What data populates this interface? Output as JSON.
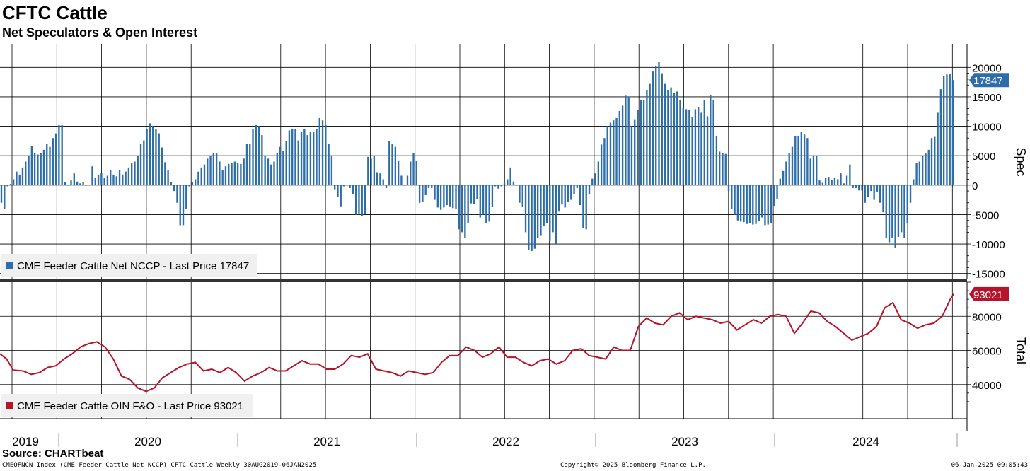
{
  "title": "CFTC Cattle",
  "subtitle": "Net Speculators & Open Interest",
  "source": "Source: CHARTbeat",
  "footer": {
    "left": "CMEOFNCN Index (CME Feeder Cattle Net NCCP) CFTC Cattle  Weekly 30AUG2019-06JAN2025",
    "middle": "Copyright© 2025 Bloomberg Finance L.P.",
    "right": "06-Jan-2025 09:05:43"
  },
  "colors": {
    "spec": "#2e6ea8",
    "total": "#b5152b"
  },
  "chart_data": [
    {
      "type": "bar",
      "ylabel": "Spec",
      "ylim": [
        -16000,
        24000
      ],
      "yticks": [
        20000,
        15000,
        10000,
        5000,
        0,
        -5000,
        -10000,
        -15000
      ],
      "ytick_labels": [
        "20000",
        "15000",
        "10000",
        "5000",
        "0",
        "-5000",
        "-10000",
        "-15000"
      ],
      "legend": "CME Feeder Cattle Net NCCP - Last Price 17847",
      "last_value_label": "17847",
      "last_value": 17847,
      "series": [
        {
          "name": "CME Feeder Cattle Net NCCP",
          "values": [
            -3000,
            -4000,
            -200,
            200,
            1000,
            2300,
            1800,
            3000,
            4000,
            5000,
            6600,
            5500,
            5200,
            5400,
            6000,
            7000,
            6500,
            8000,
            8800,
            10200,
            10200,
            500,
            -100,
            800,
            2000,
            600,
            300,
            500,
            -100,
            0,
            3200,
            1200,
            1800,
            2000,
            1300,
            1600,
            2600,
            1800,
            1500,
            2500,
            1800,
            2300,
            3000,
            3800,
            4000,
            5000,
            7000,
            7600,
            9500,
            10500,
            10000,
            9500,
            8800,
            6400,
            3900,
            2500,
            500,
            -1000,
            -3000,
            -6800,
            -6800,
            -4000,
            -200,
            500,
            1000,
            2300,
            3000,
            3500,
            4500,
            5000,
            5500,
            5500,
            4000,
            2500,
            3200,
            3600,
            3800,
            4000,
            3700,
            3600,
            4500,
            7000,
            7000,
            9500,
            10200,
            10000,
            8500,
            5000,
            4500,
            3500,
            4000,
            5500,
            6500,
            5800,
            7500,
            9300,
            9600,
            9500,
            7600,
            9000,
            9500,
            8500,
            9000,
            9000,
            9500,
            11400,
            11000,
            10200,
            7000,
            5000,
            -700,
            -2000,
            -3600,
            -200,
            0,
            -500,
            -1500,
            -5000,
            -4800,
            -5200,
            -4900,
            4800,
            4500,
            5000,
            2200,
            2000,
            1000,
            -500,
            7500,
            7000,
            6500,
            4200,
            1600,
            -100,
            1600,
            4000,
            5400,
            4100,
            -3000,
            -2800,
            -1700,
            -500,
            -500,
            -2500,
            -3800,
            -4200,
            -3800,
            -3400,
            -3600,
            -3900,
            -4100,
            -7500,
            -8000,
            -9000,
            -6400,
            -3100,
            -3200,
            -2400,
            -5500,
            -5000,
            -6500,
            -6200,
            -3700,
            -200,
            -600,
            -200,
            400,
            1000,
            3000,
            600,
            -100,
            -3000,
            -3700,
            -8000,
            -11000,
            -11200,
            -10800,
            -9000,
            -8500,
            -7000,
            -6500,
            -9500,
            -8000,
            -10000,
            -4500,
            -3300,
            -3800,
            -2800,
            -2500,
            -1500,
            -500,
            -3400,
            -7300,
            -7500,
            -1600,
            1100,
            2000,
            4000,
            6900,
            8000,
            10000,
            10600,
            11000,
            11400,
            12600,
            13500,
            15200,
            15000,
            10000,
            11200,
            12800,
            14500,
            14400,
            16200,
            17200,
            19300,
            20200,
            21000,
            19000,
            17200,
            16200,
            16600,
            15600,
            15900,
            14500,
            13100,
            12900,
            12800,
            11500,
            12900,
            13200,
            12300,
            14500,
            11700,
            15300,
            14500,
            8400,
            5700,
            5400,
            5300,
            -1000,
            -4000,
            -5000,
            -6000,
            -6200,
            -6300,
            -6600,
            -6500,
            -6700,
            -6600,
            -6100,
            -5500,
            -6800,
            -6700,
            -6500,
            -3500,
            -2300,
            1100,
            2400,
            4000,
            5500,
            6500,
            8300,
            8400,
            9100,
            8600,
            8000,
            4500,
            4900,
            5000,
            800,
            400,
            1200,
            1400,
            900,
            1200,
            1000,
            2000,
            300,
            1600,
            3500,
            -500,
            -500,
            -900,
            -900,
            -3000,
            -2000,
            -1000,
            -2500,
            -1100,
            -3000,
            -4600,
            -9000,
            -9700,
            -8900,
            -10600,
            -8800,
            -8000,
            -9000,
            -6500,
            -3000,
            1000,
            3700,
            4000,
            5000,
            5500,
            6000,
            8000,
            8200,
            12300,
            16300,
            18600,
            18800,
            18900,
            17847
          ]
        }
      ]
    },
    {
      "type": "line",
      "ylabel": "Total",
      "ylim": [
        20000,
        100000
      ],
      "yticks": [
        80000,
        60000,
        40000
      ],
      "ytick_labels": [
        "80000",
        "60000",
        "40000"
      ],
      "legend": "CME Feeder Cattle OIN F&O - Last Price 93021",
      "last_value_label": "93021",
      "last_value": 93021,
      "series": [
        {
          "name": "CME Feeder Cattle OIN F&O",
          "points": [
            [
              2019.66,
              58000
            ],
            [
              2019.7,
              55000
            ],
            [
              2019.74,
              48500
            ],
            [
              2019.8,
              48000
            ],
            [
              2019.85,
              46000
            ],
            [
              2019.9,
              47000
            ],
            [
              2019.95,
              50000
            ],
            [
              2020.0,
              51000
            ],
            [
              2020.05,
              55000
            ],
            [
              2020.1,
              58000
            ],
            [
              2020.15,
              62000
            ],
            [
              2020.2,
              64000
            ],
            [
              2020.25,
              65000
            ],
            [
              2020.3,
              62000
            ],
            [
              2020.35,
              55000
            ],
            [
              2020.4,
              45000
            ],
            [
              2020.45,
              43000
            ],
            [
              2020.5,
              38000
            ],
            [
              2020.55,
              36000
            ],
            [
              2020.6,
              38000
            ],
            [
              2020.65,
              44000
            ],
            [
              2020.7,
              47000
            ],
            [
              2020.75,
              50000
            ],
            [
              2020.8,
              52000
            ],
            [
              2020.85,
              53000
            ],
            [
              2020.9,
              48000
            ],
            [
              2020.95,
              49000
            ],
            [
              2021.0,
              47000
            ],
            [
              2021.05,
              50000
            ],
            [
              2021.1,
              47000
            ],
            [
              2021.15,
              42000
            ],
            [
              2021.2,
              45000
            ],
            [
              2021.25,
              47000
            ],
            [
              2021.3,
              50000
            ],
            [
              2021.35,
              48000
            ],
            [
              2021.4,
              48000
            ],
            [
              2021.45,
              51000
            ],
            [
              2021.5,
              54000
            ],
            [
              2021.55,
              52000
            ],
            [
              2021.6,
              52000
            ],
            [
              2021.65,
              49000
            ],
            [
              2021.7,
              49000
            ],
            [
              2021.75,
              52000
            ],
            [
              2021.8,
              57000
            ],
            [
              2021.85,
              56000
            ],
            [
              2021.9,
              58000
            ],
            [
              2021.95,
              49000
            ],
            [
              2022.0,
              48000
            ],
            [
              2022.05,
              47000
            ],
            [
              2022.1,
              45000
            ],
            [
              2022.15,
              48000
            ],
            [
              2022.2,
              47000
            ],
            [
              2022.25,
              46000
            ],
            [
              2022.3,
              47000
            ],
            [
              2022.35,
              53000
            ],
            [
              2022.4,
              57000
            ],
            [
              2022.45,
              57000
            ],
            [
              2022.5,
              62000
            ],
            [
              2022.55,
              60000
            ],
            [
              2022.6,
              56000
            ],
            [
              2022.65,
              58000
            ],
            [
              2022.7,
              62000
            ],
            [
              2022.75,
              56000
            ],
            [
              2022.8,
              56000
            ],
            [
              2022.85,
              53000
            ],
            [
              2022.9,
              51000
            ],
            [
              2022.95,
              54000
            ],
            [
              2023.0,
              55000
            ],
            [
              2023.05,
              52000
            ],
            [
              2023.1,
              54000
            ],
            [
              2023.15,
              60000
            ],
            [
              2023.2,
              61000
            ],
            [
              2023.25,
              57000
            ],
            [
              2023.3,
              56000
            ],
            [
              2023.35,
              55000
            ],
            [
              2023.4,
              62000
            ],
            [
              2023.45,
              60000
            ],
            [
              2023.5,
              60000
            ],
            [
              2023.55,
              74000
            ],
            [
              2023.6,
              79000
            ],
            [
              2023.65,
              76000
            ],
            [
              2023.7,
              75000
            ],
            [
              2023.75,
              80000
            ],
            [
              2023.8,
              82000
            ],
            [
              2023.85,
              78000
            ],
            [
              2023.9,
              80000
            ],
            [
              2023.95,
              79000
            ],
            [
              2024.0,
              78000
            ],
            [
              2024.05,
              76000
            ],
            [
              2024.1,
              77000
            ],
            [
              2024.15,
              72000
            ],
            [
              2024.2,
              75000
            ],
            [
              2024.25,
              78000
            ],
            [
              2024.3,
              76000
            ],
            [
              2024.35,
              80000
            ],
            [
              2024.4,
              81000
            ],
            [
              2024.45,
              80000
            ],
            [
              2024.5,
              70000
            ],
            [
              2024.55,
              76000
            ],
            [
              2024.6,
              83000
            ],
            [
              2024.65,
              82000
            ],
            [
              2024.7,
              77000
            ],
            [
              2024.75,
              74000
            ],
            [
              2024.8,
              70000
            ],
            [
              2024.85,
              66000
            ],
            [
              2024.9,
              68000
            ],
            [
              2024.95,
              70000
            ],
            [
              2025.0,
              74000
            ],
            [
              2025.05,
              85000
            ],
            [
              2025.1,
              88000
            ],
            [
              2025.15,
              78000
            ],
            [
              2025.2,
              76000
            ],
            [
              2025.25,
              73000
            ],
            [
              2025.3,
              75000
            ],
            [
              2025.35,
              76000
            ],
            [
              2025.4,
              80000
            ],
            [
              2025.45,
              90000
            ],
            [
              2025.47,
              93021
            ]
          ]
        }
      ]
    }
  ],
  "x_axis": {
    "labels": [
      "2019",
      "2020",
      "2021",
      "2022",
      "2023",
      "2024"
    ]
  }
}
